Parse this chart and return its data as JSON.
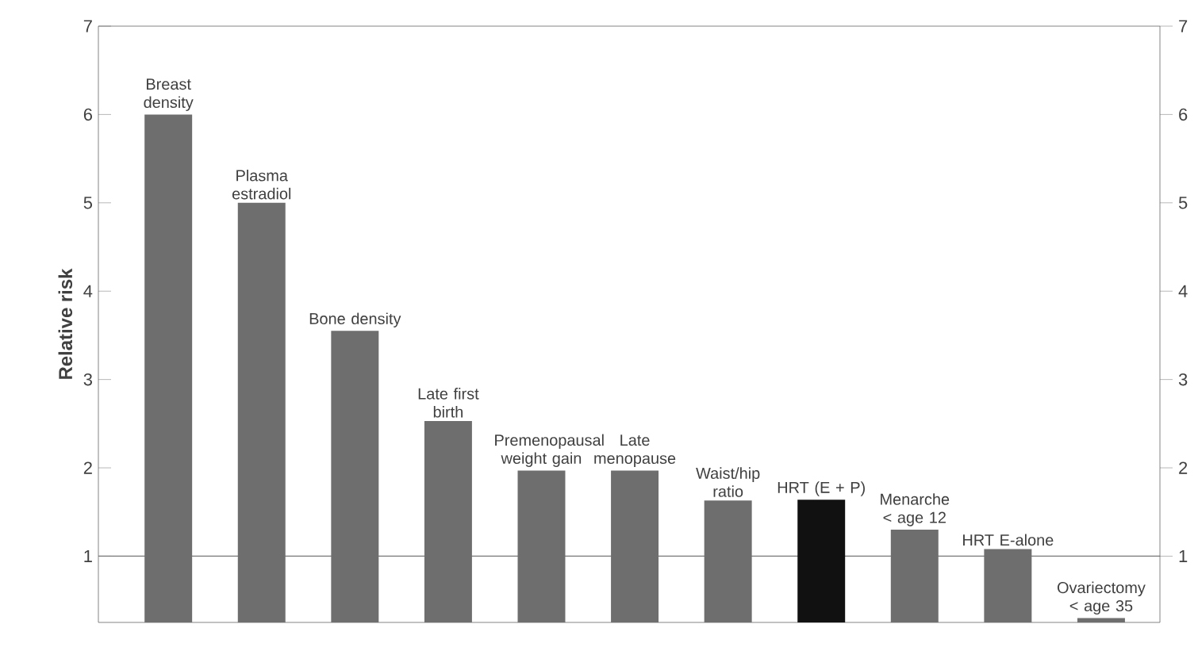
{
  "chart_data": {
    "type": "bar",
    "ylabel": "Relative risk",
    "categories": [
      "Breast density",
      "Plasma estradiol",
      "Bone density",
      "Late first birth",
      "Premenopausal weight gain",
      "Late menopause",
      "Waist/hip ratio",
      "HRT (E + P)",
      "Menarche < age 12",
      "HRT E-alone",
      "Ovariectomy < age 35"
    ],
    "values": [
      6,
      5,
      3.55,
      2.53,
      1.97,
      1.97,
      1.63,
      1.64,
      1.3,
      1.08,
      0.3
    ],
    "colors": [
      "#6e6e6e",
      "#6e6e6e",
      "#6e6e6e",
      "#6e6e6e",
      "#6e6e6e",
      "#6e6e6e",
      "#6e6e6e",
      "#111111",
      "#6e6e6e",
      "#6e6e6e",
      "#6e6e6e"
    ],
    "ylim": [
      0.25,
      7
    ],
    "yticks": [
      1,
      2,
      3,
      4,
      5,
      6,
      7
    ],
    "y2lim": [
      0.25,
      7
    ],
    "y2ticks": [
      1,
      2,
      3,
      4,
      5,
      6,
      7
    ],
    "ref_lines": [
      {
        "axis": "y",
        "value": 1,
        "color": "#777777"
      }
    ]
  }
}
